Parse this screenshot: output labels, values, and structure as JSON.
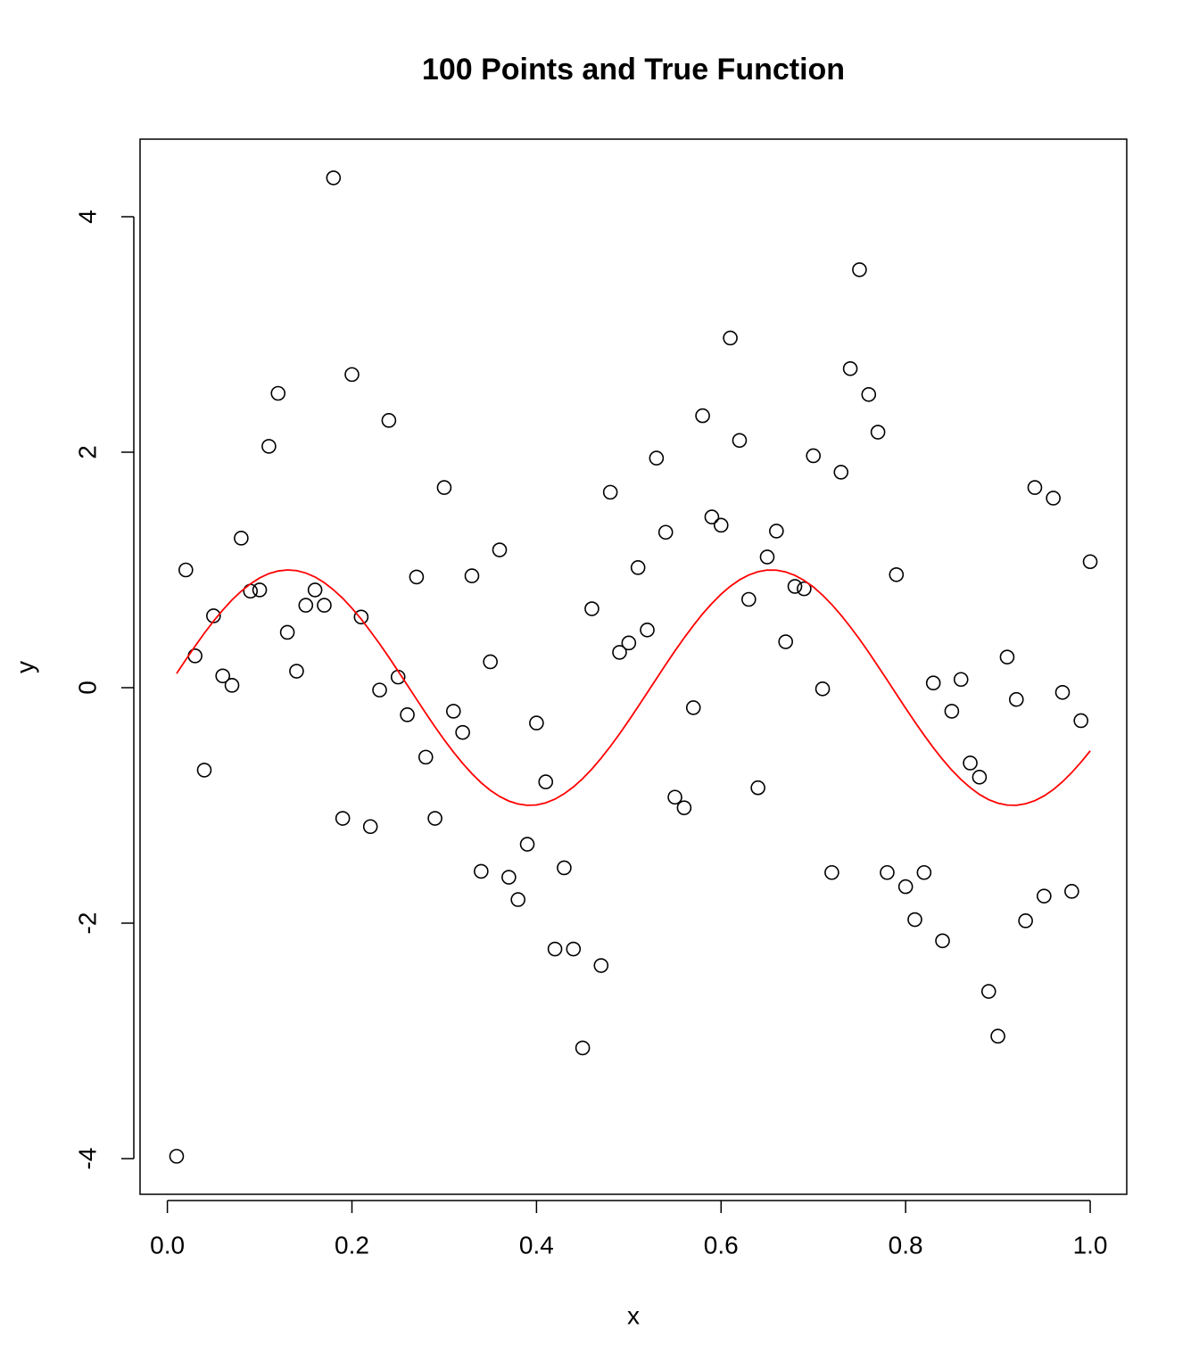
{
  "chart_data": {
    "type": "scatter",
    "title": "100 Points and True Function",
    "x_label": "x",
    "y_label": "y",
    "x": [
      0.01,
      0.02,
      0.03,
      0.04,
      0.05,
      0.06,
      0.07,
      0.08,
      0.09,
      0.1,
      0.11,
      0.12,
      0.13,
      0.14,
      0.15,
      0.16,
      0.17,
      0.18,
      0.19,
      0.2,
      0.21,
      0.22,
      0.23,
      0.24,
      0.25,
      0.26,
      0.27,
      0.28,
      0.29,
      0.3,
      0.31,
      0.32,
      0.33,
      0.34,
      0.35,
      0.36,
      0.37,
      0.38,
      0.39,
      0.4,
      0.41,
      0.42,
      0.43,
      0.44,
      0.45,
      0.46,
      0.47,
      0.48,
      0.49,
      0.5,
      0.51,
      0.52,
      0.53,
      0.54,
      0.55,
      0.56,
      0.57,
      0.58,
      0.59,
      0.6,
      0.61,
      0.62,
      0.63,
      0.64,
      0.65,
      0.66,
      0.67,
      0.68,
      0.69,
      0.7,
      0.71,
      0.72,
      0.73,
      0.74,
      0.75,
      0.76,
      0.77,
      0.78,
      0.79,
      0.8,
      0.81,
      0.82,
      0.83,
      0.84,
      0.85,
      0.86,
      0.87,
      0.88,
      0.89,
      0.9,
      0.91,
      0.92,
      0.93,
      0.94,
      0.95,
      0.96,
      0.97,
      0.98,
      0.99,
      1.0
    ],
    "series": [
      {
        "type": "scatter",
        "color": "#000000",
        "values": [
          -3.98,
          1.0,
          0.27,
          -0.7,
          0.61,
          0.1,
          0.02,
          1.27,
          0.82,
          0.83,
          2.05,
          2.5,
          0.47,
          0.14,
          0.7,
          0.83,
          0.7,
          4.33,
          -1.11,
          2.66,
          0.6,
          -1.18,
          -0.02,
          2.27,
          0.09,
          -0.23,
          0.94,
          -0.59,
          -1.11,
          1.7,
          -0.2,
          -0.38,
          0.95,
          -1.56,
          0.22,
          1.17,
          -1.61,
          -1.8,
          -1.33,
          -0.3,
          -0.8,
          -2.22,
          -1.53,
          -2.22,
          -3.06,
          0.67,
          -2.36,
          1.66,
          0.3,
          0.38,
          1.02,
          0.49,
          1.95,
          1.32,
          -0.93,
          -1.02,
          -0.17,
          2.31,
          1.45,
          1.38,
          2.97,
          2.1,
          0.75,
          -0.85,
          1.11,
          1.33,
          0.39,
          0.86,
          0.84,
          1.97,
          -0.01,
          -1.57,
          1.83,
          2.71,
          3.55,
          2.49,
          2.17,
          -1.57,
          0.96,
          -1.69,
          -1.97,
          -1.57,
          0.04,
          -2.15,
          -0.2,
          0.07,
          -0.64,
          -0.76,
          -2.58,
          -2.96,
          0.26,
          -0.1,
          -1.98,
          1.7,
          -1.77,
          1.61,
          -0.04,
          -1.73,
          -0.28,
          1.07
        ]
      },
      {
        "type": "line",
        "color": "#ff0000",
        "values": [
          0.12,
          0.238,
          0.352,
          0.462,
          0.565,
          0.659,
          0.745,
          0.819,
          0.882,
          0.932,
          0.969,
          0.991,
          1.0,
          0.994,
          0.974,
          0.94,
          0.892,
          0.831,
          0.759,
          0.675,
          0.583,
          0.479,
          0.372,
          0.259,
          0.141,
          0.022,
          -0.098,
          -0.217,
          -0.332,
          -0.443,
          -0.547,
          -0.643,
          -0.73,
          -0.807,
          -0.872,
          -0.924,
          -0.963,
          -0.988,
          -0.999,
          -0.996,
          -0.978,
          -0.947,
          -0.901,
          -0.843,
          -0.773,
          -0.691,
          -0.599,
          -0.499,
          -0.392,
          -0.279,
          -0.162,
          -0.043,
          0.077,
          0.196,
          0.312,
          0.423,
          0.528,
          0.627,
          0.715,
          0.794,
          0.861,
          0.916,
          0.957,
          0.985,
          0.999,
          0.998,
          0.983,
          0.954,
          0.911,
          0.855,
          0.786,
          0.706,
          0.616,
          0.517,
          0.412,
          0.3,
          0.183,
          0.065,
          -0.055,
          -0.174,
          -0.291,
          -0.403,
          -0.51,
          -0.609,
          -0.7,
          -0.78,
          -0.849,
          -0.907,
          -0.951,
          -0.981,
          -0.997,
          -0.999,
          -0.986,
          -0.96,
          -0.919,
          -0.866,
          -0.799,
          -0.721,
          -0.633,
          -0.537
        ]
      }
    ],
    "xlim": [
      -0.0296,
      1.0396
    ],
    "ylim": [
      -4.303,
      4.659
    ],
    "xticks": [
      {
        "value": 0,
        "label": "0.0"
      },
      0.2,
      0.4,
      0.6,
      0.8,
      {
        "value": 1,
        "label": "1.0"
      }
    ],
    "yticks": [
      -4,
      -2,
      0,
      2,
      4
    ]
  }
}
